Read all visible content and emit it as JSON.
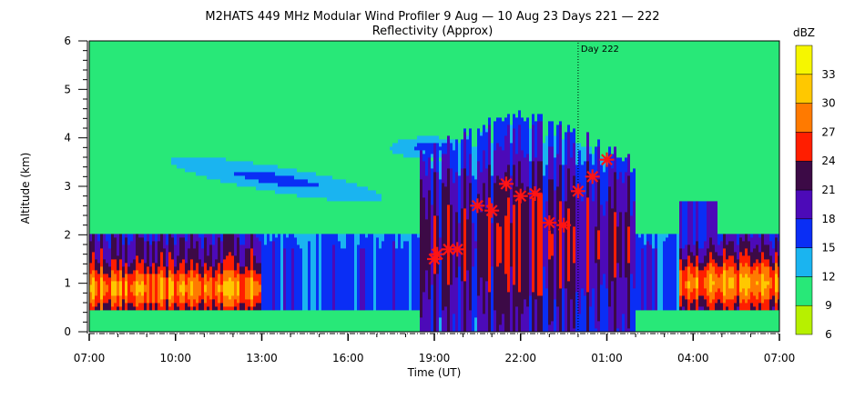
{
  "chart_data": {
    "type": "heatmap",
    "title": "M2HATS 449 MHz Modular Wind Profiler   9 Aug — 10 Aug 23 Days 221 — 222",
    "subtitle": "Reflectivity (Approx)",
    "xlabel": "Time (UT)",
    "ylabel": "Altitude (km)",
    "x_ticks": [
      "07:00",
      "10:00",
      "13:00",
      "16:00",
      "19:00",
      "22:00",
      "01:00",
      "04:00",
      "07:00"
    ],
    "x_range_hours": [
      0,
      24
    ],
    "y_ticks": [
      "0",
      "1",
      "2",
      "3",
      "4",
      "5",
      "6"
    ],
    "ylim": [
      0,
      6
    ],
    "day_marker": {
      "label": "Day 222",
      "hour": 17
    },
    "colorbar": {
      "unit": "dBZ",
      "tick_labels": [
        "6",
        "9",
        "12",
        "15",
        "18",
        "21",
        "24",
        "27",
        "30",
        "33"
      ],
      "bins": [
        {
          "min": 6,
          "color": "#b7f000"
        },
        {
          "min": 9,
          "color": "#28e878"
        },
        {
          "min": 12,
          "color": "#1ab4f0"
        },
        {
          "min": 15,
          "color": "#0a2ef5"
        },
        {
          "min": 18,
          "color": "#4c0ab8"
        },
        {
          "min": 21,
          "color": "#3c0a46"
        },
        {
          "min": 24,
          "color": "#ff1e00"
        },
        {
          "min": 27,
          "color": "#ff7a00"
        },
        {
          "min": 30,
          "color": "#ffc800"
        },
        {
          "min": 33,
          "color": "#f6f600"
        }
      ]
    },
    "marker_color": "#ff1414",
    "markers": [
      {
        "hour": 12.0,
        "alt_km": 1.5
      },
      {
        "hour": 12.1,
        "alt_km": 1.6
      },
      {
        "hour": 12.5,
        "alt_km": 1.7
      },
      {
        "hour": 12.8,
        "alt_km": 1.7
      },
      {
        "hour": 13.5,
        "alt_km": 2.6
      },
      {
        "hour": 14.0,
        "alt_km": 2.5
      },
      {
        "hour": 14.5,
        "alt_km": 3.05
      },
      {
        "hour": 15.0,
        "alt_km": 2.8
      },
      {
        "hour": 15.5,
        "alt_km": 2.85
      },
      {
        "hour": 16.0,
        "alt_km": 2.25
      },
      {
        "hour": 16.5,
        "alt_km": 2.2
      },
      {
        "hour": 17.0,
        "alt_km": 2.9
      },
      {
        "hour": 17.5,
        "alt_km": 3.2
      },
      {
        "hour": 18.0,
        "alt_km": 3.55
      }
    ]
  }
}
